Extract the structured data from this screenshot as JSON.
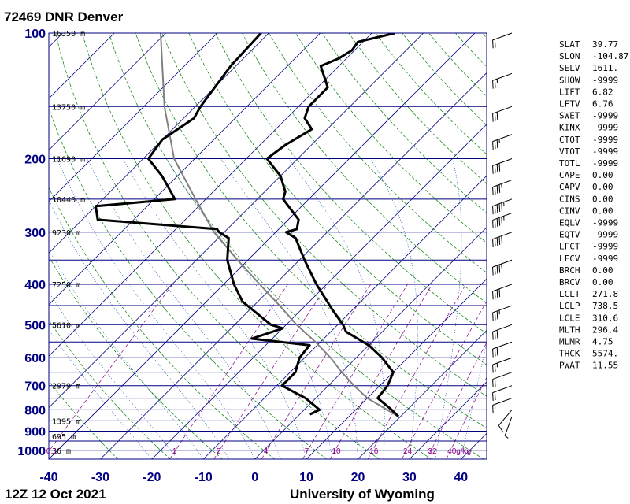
{
  "header": {
    "title": "72469 DNR Denver",
    "date_label": "12Z 12 Oct 2021",
    "credit": "University of Wyoming"
  },
  "colors": {
    "isobar": "#000080",
    "isotherm": "#000080",
    "dry_adiabat": "#008000",
    "moist_adiabat": "#0040a0",
    "mixing_ratio": "#8b008b",
    "sounding": "#000000",
    "parcel": "#808080"
  },
  "chart_data": {
    "type": "skew-t log-p",
    "xlabel": "",
    "ylabel": "",
    "pressure_ticks": [
      100,
      200,
      300,
      400,
      500,
      600,
      700,
      800,
      900,
      1000
    ],
    "temperature_ticks": [
      -40,
      -30,
      -20,
      -10,
      0,
      10,
      20,
      30,
      40
    ],
    "pressure_range": [
      1050,
      100
    ],
    "temperature_range_at_1050": [
      -40,
      45
    ],
    "height_labels": [
      {
        "p": 100,
        "text": "16350 m"
      },
      {
        "p": 150,
        "text": "13750 m"
      },
      {
        "p": 200,
        "text": "11690 m"
      },
      {
        "p": 250,
        "text": "10440 m"
      },
      {
        "p": 300,
        "text": "9230 m"
      },
      {
        "p": 400,
        "text": "7250 m"
      },
      {
        "p": 500,
        "text": "5610 m"
      },
      {
        "p": 700,
        "text": "2979 m"
      },
      {
        "p": 850,
        "text": "1395 m"
      },
      {
        "p": 925,
        "text": "695 m"
      },
      {
        "p": 1000,
        "text": "36 m"
      }
    ],
    "mixing_ratio_labels": [
      "0.1",
      "1",
      "2",
      "4",
      "7",
      "10",
      "16",
      "24",
      "32",
      "40g/kg"
    ],
    "temperature_profile": [
      [
        830,
        19.6
      ],
      [
        800,
        17
      ],
      [
        750,
        12
      ],
      [
        700,
        11.5
      ],
      [
        650,
        10
      ],
      [
        600,
        5
      ],
      [
        560,
        0
      ],
      [
        520,
        -7
      ],
      [
        500,
        -9
      ],
      [
        460,
        -14
      ],
      [
        400,
        -22
      ],
      [
        350,
        -29
      ],
      [
        310,
        -35
      ],
      [
        300,
        -38
      ],
      [
        295,
        -36.5
      ],
      [
        280,
        -38
      ],
      [
        250,
        -45
      ],
      [
        240,
        -46
      ],
      [
        220,
        -50
      ],
      [
        200,
        -56
      ],
      [
        185,
        -55
      ],
      [
        170,
        -53
      ],
      [
        160,
        -56.5
      ],
      [
        150,
        -58
      ],
      [
        135,
        -58
      ],
      [
        120,
        -63.5
      ],
      [
        115,
        -61.5
      ],
      [
        110,
        -60.5
      ],
      [
        105,
        -61
      ],
      [
        100,
        -55.5
      ]
    ],
    "dewpoint_profile": [
      [
        820,
        2
      ],
      [
        800,
        3
      ],
      [
        750,
        -2
      ],
      [
        700,
        -9
      ],
      [
        650,
        -9
      ],
      [
        600,
        -11
      ],
      [
        560,
        -11.5
      ],
      [
        540,
        -24
      ],
      [
        510,
        -20
      ],
      [
        500,
        -23
      ],
      [
        440,
        -33
      ],
      [
        400,
        -38
      ],
      [
        350,
        -44
      ],
      [
        310,
        -48
      ],
      [
        300,
        -51
      ],
      [
        295,
        -52
      ],
      [
        280,
        -77
      ],
      [
        260,
        -80
      ],
      [
        250,
        -66
      ],
      [
        220,
        -73
      ],
      [
        200,
        -79
      ],
      [
        180,
        -80
      ],
      [
        160,
        -78
      ],
      [
        150,
        -79
      ],
      [
        120,
        -81
      ],
      [
        100,
        -81.5
      ]
    ],
    "parcel_profile": [
      [
        830,
        19.6
      ],
      [
        750,
        10
      ],
      [
        700,
        5
      ],
      [
        650,
        0
      ],
      [
        600,
        -5
      ],
      [
        550,
        -11
      ],
      [
        500,
        -18
      ],
      [
        450,
        -25
      ],
      [
        400,
        -33
      ],
      [
        350,
        -42
      ],
      [
        300,
        -52
      ],
      [
        250,
        -62
      ],
      [
        200,
        -74
      ],
      [
        150,
        -86
      ],
      [
        100,
        -101
      ]
    ],
    "wind_barbs": [
      {
        "p": 830,
        "dir": 200,
        "spd": 5
      },
      {
        "p": 800,
        "dir": 220,
        "spd": 10
      },
      {
        "p": 750,
        "dir": 250,
        "spd": 15
      },
      {
        "p": 700,
        "dir": 250,
        "spd": 20
      },
      {
        "p": 650,
        "dir": 250,
        "spd": 20
      },
      {
        "p": 600,
        "dir": 250,
        "spd": 25
      },
      {
        "p": 550,
        "dir": 250,
        "spd": 30
      },
      {
        "p": 500,
        "dir": 250,
        "spd": 30
      },
      {
        "p": 450,
        "dir": 250,
        "spd": 35
      },
      {
        "p": 400,
        "dir": 250,
        "spd": 40
      },
      {
        "p": 350,
        "dir": 250,
        "spd": 45
      },
      {
        "p": 300,
        "dir": 250,
        "spd": 50
      },
      {
        "p": 270,
        "dir": 250,
        "spd": 55
      },
      {
        "p": 250,
        "dir": 250,
        "spd": 55
      },
      {
        "p": 225,
        "dir": 250,
        "spd": 45
      },
      {
        "p": 200,
        "dir": 250,
        "spd": 40
      },
      {
        "p": 175,
        "dir": 250,
        "spd": 35
      },
      {
        "p": 150,
        "dir": 250,
        "spd": 30
      },
      {
        "p": 125,
        "dir": 250,
        "spd": 25
      },
      {
        "p": 100,
        "dir": 250,
        "spd": 20
      }
    ]
  },
  "indices": [
    {
      "name": "SLAT",
      "value": "39.77"
    },
    {
      "name": "SLON",
      "value": "-104.87"
    },
    {
      "name": "SELV",
      "value": "1611."
    },
    {
      "name": "SHOW",
      "value": "-9999"
    },
    {
      "name": "LIFT",
      "value": "6.82"
    },
    {
      "name": "LFTV",
      "value": "6.76"
    },
    {
      "name": "SWET",
      "value": "-9999"
    },
    {
      "name": "KINX",
      "value": "-9999"
    },
    {
      "name": "CTOT",
      "value": "-9999"
    },
    {
      "name": "VTOT",
      "value": "-9999"
    },
    {
      "name": "TOTL",
      "value": "-9999"
    },
    {
      "name": "CAPE",
      "value": "0.00"
    },
    {
      "name": "CAPV",
      "value": "0.00"
    },
    {
      "name": "CINS",
      "value": "0.00"
    },
    {
      "name": "CINV",
      "value": "0.00"
    },
    {
      "name": "EQLV",
      "value": "-9999"
    },
    {
      "name": "EQTV",
      "value": "-9999"
    },
    {
      "name": "LFCT",
      "value": "-9999"
    },
    {
      "name": "LFCV",
      "value": "-9999"
    },
    {
      "name": "BRCH",
      "value": "0.00"
    },
    {
      "name": "BRCV",
      "value": "0.00"
    },
    {
      "name": "LCLT",
      "value": "271.8"
    },
    {
      "name": "LCLP",
      "value": "738.5"
    },
    {
      "name": "LCLE",
      "value": "310.6"
    },
    {
      "name": "MLTH",
      "value": "296.4"
    },
    {
      "name": "MLMR",
      "value": "4.75"
    },
    {
      "name": "THCK",
      "value": "5574."
    },
    {
      "name": "PWAT",
      "value": "11.55"
    }
  ]
}
